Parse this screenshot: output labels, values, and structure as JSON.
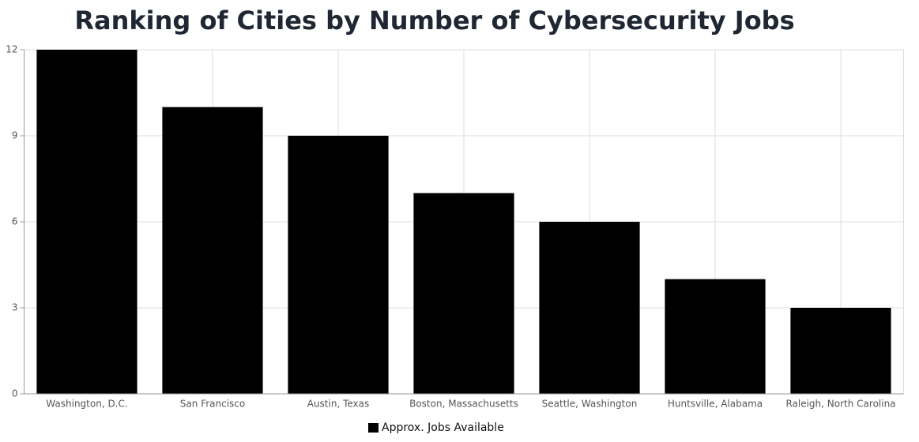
{
  "chart_data": {
    "type": "bar",
    "title": "Ranking of Cities by Number of Cybersecurity Jobs",
    "categories": [
      "Washington, D.C.",
      "San Francisco",
      "Austin, Texas",
      "Boston, Massachusetts",
      "Seattle, Washington",
      "Huntsville, Alabama",
      "Raleigh, North Carolina"
    ],
    "series": [
      {
        "name": "Approx. Jobs Available",
        "color": "#000000",
        "values": [
          12,
          10,
          9,
          7,
          6,
          4,
          3
        ]
      }
    ],
    "ylim": [
      0,
      12
    ],
    "yticks": [
      0,
      3,
      6,
      9,
      12
    ],
    "grid": true,
    "legend": "bottom"
  }
}
